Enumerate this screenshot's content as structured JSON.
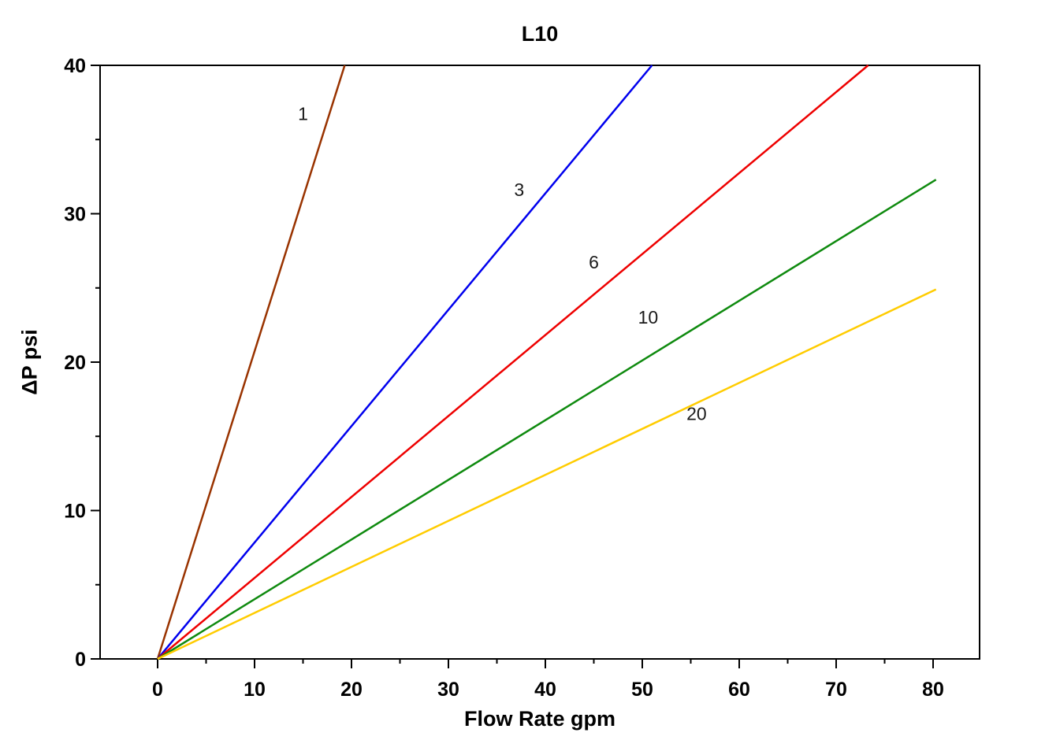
{
  "chart_data": {
    "type": "line",
    "title": "L10",
    "xlabel": "Flow Rate gpm",
    "ylabel": "ΔP psi",
    "xlim": [
      -6,
      85
    ],
    "ylim": [
      0,
      40
    ],
    "x_ticks": [
      0,
      10,
      20,
      30,
      40,
      50,
      60,
      70,
      80
    ],
    "x_minor_ticks": [
      5,
      15,
      25,
      35,
      45,
      55,
      65,
      75
    ],
    "y_ticks": [
      0,
      10,
      20,
      30,
      40
    ],
    "y_minor_ticks": [
      5,
      15,
      25,
      35
    ],
    "grid": false,
    "legend_position": "inline-labels",
    "axis_color": "#000000",
    "series": [
      {
        "name": "1",
        "color": "#993300",
        "slope_psi_per_gpm": 2.07,
        "points": [
          [
            0,
            0
          ],
          [
            19.3,
            40
          ]
        ],
        "label_pos": [
          15.0,
          36.3
        ]
      },
      {
        "name": "3",
        "color": "#0000EE",
        "slope_psi_per_gpm": 0.78,
        "points": [
          [
            0,
            0
          ],
          [
            51.0,
            40
          ]
        ],
        "label_pos": [
          37.3,
          31.2
        ]
      },
      {
        "name": "6",
        "color": "#EE0000",
        "slope_psi_per_gpm": 0.55,
        "points": [
          [
            0,
            0
          ],
          [
            73.3,
            40
          ]
        ],
        "label_pos": [
          45.0,
          26.3
        ]
      },
      {
        "name": "10",
        "color": "#0F8A0F",
        "slope_psi_per_gpm": 0.4,
        "points": [
          [
            0,
            0
          ],
          [
            80.3,
            32.3
          ]
        ],
        "label_pos": [
          50.6,
          22.6
        ]
      },
      {
        "name": "20",
        "color": "#FFCC00",
        "slope_psi_per_gpm": 0.31,
        "points": [
          [
            0,
            0
          ],
          [
            80.3,
            24.9
          ]
        ],
        "label_pos": [
          55.6,
          16.1
        ]
      }
    ]
  }
}
